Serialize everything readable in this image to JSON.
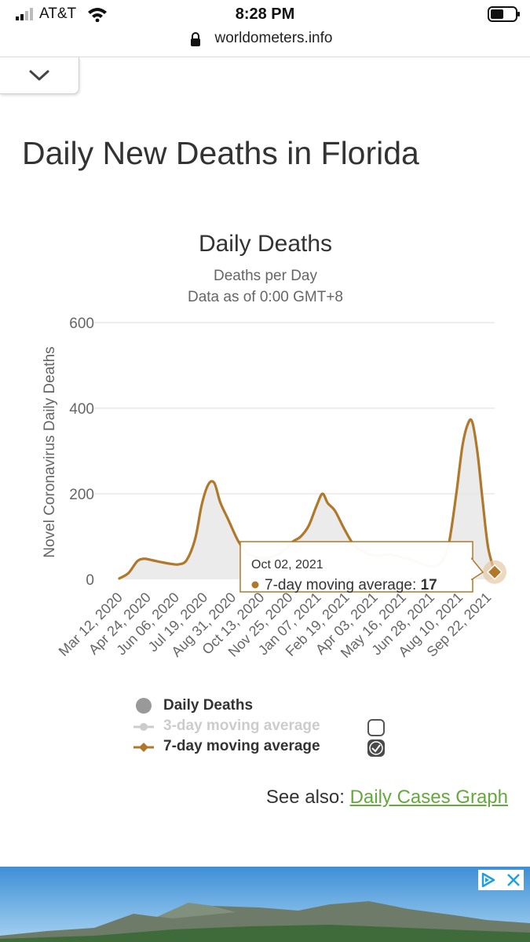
{
  "status": {
    "carrier": "AT&T",
    "time": "8:28 PM",
    "url": "worldometers.info"
  },
  "page": {
    "title": "Daily New Deaths in Florida"
  },
  "chart_data": {
    "type": "area",
    "title": "Daily Deaths",
    "subtitle_lines": [
      "Deaths per Day",
      "Data as of 0:00 GMT+8"
    ],
    "ylabel": "Novel Coronavirus Daily Deaths",
    "xlabel": "",
    "ylim": [
      0,
      600
    ],
    "yticks": [
      0,
      200,
      400,
      600
    ],
    "x_range": [
      "2020-03-12",
      "2021-10-02"
    ],
    "x_tick_labels": [
      "Mar 12, 2020",
      "Apr 24, 2020",
      "Jun 06, 2020",
      "Jul 19, 2020",
      "Aug 31, 2020",
      "Oct 13, 2020",
      "Nov 25, 2020",
      "Jan 07, 2021",
      "Feb 19, 2021",
      "Apr 03, 2021",
      "May 16, 2021",
      "Jun 28, 2021",
      "Aug 10, 2021",
      "Sep 22, 2021"
    ],
    "grid": true,
    "series": [
      {
        "name": "7-day moving average",
        "color": "#b0782b",
        "x": [
          "2020-03-12",
          "2020-03-26",
          "2020-04-08",
          "2020-04-18",
          "2020-04-30",
          "2020-05-15",
          "2020-05-30",
          "2020-06-10",
          "2020-06-22",
          "2020-07-05",
          "2020-07-15",
          "2020-07-25",
          "2020-08-03",
          "2020-08-12",
          "2020-08-24",
          "2020-09-08",
          "2020-09-22",
          "2020-10-06",
          "2020-10-20",
          "2020-11-03",
          "2020-11-17",
          "2020-11-30",
          "2020-12-12",
          "2020-12-24",
          "2021-01-05",
          "2021-01-14",
          "2021-01-22",
          "2021-02-02",
          "2021-02-17",
          "2021-03-03",
          "2021-03-20",
          "2021-04-06",
          "2021-04-25",
          "2021-05-13",
          "2021-05-30",
          "2021-06-15",
          "2021-06-30",
          "2021-07-12",
          "2021-07-24",
          "2021-08-04",
          "2021-08-14",
          "2021-08-22",
          "2021-08-29",
          "2021-09-06",
          "2021-09-14",
          "2021-09-22",
          "2021-10-02"
        ],
        "y": [
          2,
          15,
          42,
          48,
          45,
          40,
          36,
          35,
          45,
          95,
          175,
          222,
          225,
          180,
          140,
          90,
          62,
          52,
          50,
          55,
          68,
          88,
          100,
          125,
          172,
          200,
          178,
          160,
          115,
          80,
          62,
          55,
          58,
          52,
          45,
          35,
          30,
          38,
          80,
          190,
          310,
          362,
          368,
          295,
          180,
          75,
          17
        ]
      }
    ],
    "hidden_series": [
      {
        "name": "Daily Deaths",
        "color": "#999999"
      },
      {
        "name": "3-day moving average",
        "color": "#cccccc"
      }
    ],
    "tooltip": {
      "date": "Oct 02, 2021",
      "series": "7-day moving average",
      "value": "17"
    },
    "legend": {
      "placement": "bottom",
      "items": [
        {
          "label": "Daily Deaths",
          "color": "#999999",
          "enabled": true,
          "checkbox": false,
          "checked": false
        },
        {
          "label": "3-day moving average",
          "color": "#cccccc",
          "enabled": false,
          "checkbox": true,
          "checked": false
        },
        {
          "label": "7-day moving average",
          "color": "#b0782b",
          "enabled": true,
          "checkbox": true,
          "checked": true
        }
      ]
    }
  },
  "see_also": {
    "prefix": "See also: ",
    "link_label": "Daily Cases Graph"
  }
}
